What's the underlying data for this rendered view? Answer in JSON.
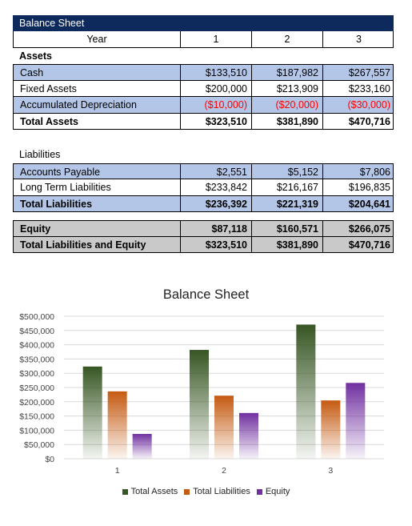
{
  "sheet": {
    "title": "Balance Sheet",
    "header": {
      "label": "Year",
      "years": [
        "1",
        "2",
        "3"
      ]
    },
    "assets": {
      "heading": "Assets",
      "rows": [
        {
          "label": "Cash",
          "values": [
            "$133,510",
            "$187,982",
            "$267,557"
          ]
        },
        {
          "label": "Fixed Assets",
          "values": [
            "$200,000",
            "$213,909",
            "$233,160"
          ]
        },
        {
          "label": "Accumulated Depreciation",
          "values": [
            "($10,000)",
            "($20,000)",
            "($30,000)"
          ]
        }
      ],
      "total": {
        "label": "Total Assets",
        "values": [
          "$323,510",
          "$381,890",
          "$470,716"
        ]
      }
    },
    "liabilities": {
      "heading": "Liabilities",
      "rows": [
        {
          "label": "Accounts Payable",
          "values": [
            "$2,551",
            "$5,152",
            "$7,806"
          ]
        },
        {
          "label": "Long Term Liabilities",
          "values": [
            "$233,842",
            "$216,167",
            "$196,835"
          ]
        }
      ],
      "total": {
        "label": "Total Liabilities",
        "values": [
          "$236,392",
          "$221,319",
          "$204,641"
        ]
      }
    },
    "equity": {
      "equity_row": {
        "label": "Equity",
        "values": [
          "$87,118",
          "$160,571",
          "$266,075"
        ]
      },
      "total_row": {
        "label": "Total Liabilities and Equity",
        "values": [
          "$323,510",
          "$381,890",
          "$470,716"
        ]
      }
    }
  },
  "chart_data": {
    "type": "bar",
    "title": "Balance Sheet",
    "categories": [
      "1",
      "2",
      "3"
    ],
    "series": [
      {
        "name": "Total Assets",
        "values": [
          323510,
          381890,
          470716
        ],
        "color": "#375623"
      },
      {
        "name": "Total Liabilities",
        "values": [
          236392,
          221319,
          204641
        ],
        "color": "#c55a11"
      },
      {
        "name": "Equity",
        "values": [
          87118,
          160571,
          266075
        ],
        "color": "#7030a0"
      }
    ],
    "ylim": [
      0,
      500000
    ],
    "yticks": [
      0,
      50000,
      100000,
      150000,
      200000,
      250000,
      300000,
      350000,
      400000,
      450000,
      500000
    ],
    "ytick_labels": [
      "$0",
      "$50,000",
      "$100,000",
      "$150,000",
      "$200,000",
      "$250,000",
      "$300,000",
      "$350,000",
      "$400,000",
      "$450,000",
      "$500,000"
    ],
    "xlabel": "",
    "ylabel": "",
    "grid": true,
    "legend_position": "bottom"
  }
}
